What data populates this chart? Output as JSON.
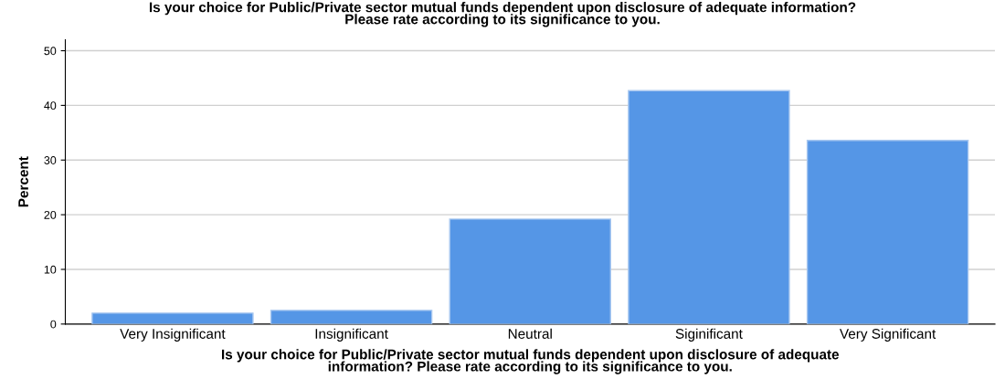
{
  "chart_data": {
    "type": "bar",
    "title": "Is your choice for Public/Private sector mutual funds dependent upon disclosure of adequate information?\nPlease rate according to its significance to you.",
    "xlabel": "Is your choice for Public/Private sector mutual funds dependent upon disclosure of adequate\ninformation? Please rate according to its significance to you.",
    "ylabel": "Percent",
    "categories": [
      "Very Insignificant",
      "Insignificant",
      "Neutral",
      "Siginificant",
      "Very Significant"
    ],
    "values": [
      2.0,
      2.5,
      19.2,
      42.7,
      33.6
    ],
    "color": "#5596e6",
    "ylim": [
      0,
      52
    ],
    "yticks": [
      0,
      10,
      20,
      30,
      40,
      50
    ],
    "grid": "y"
  }
}
